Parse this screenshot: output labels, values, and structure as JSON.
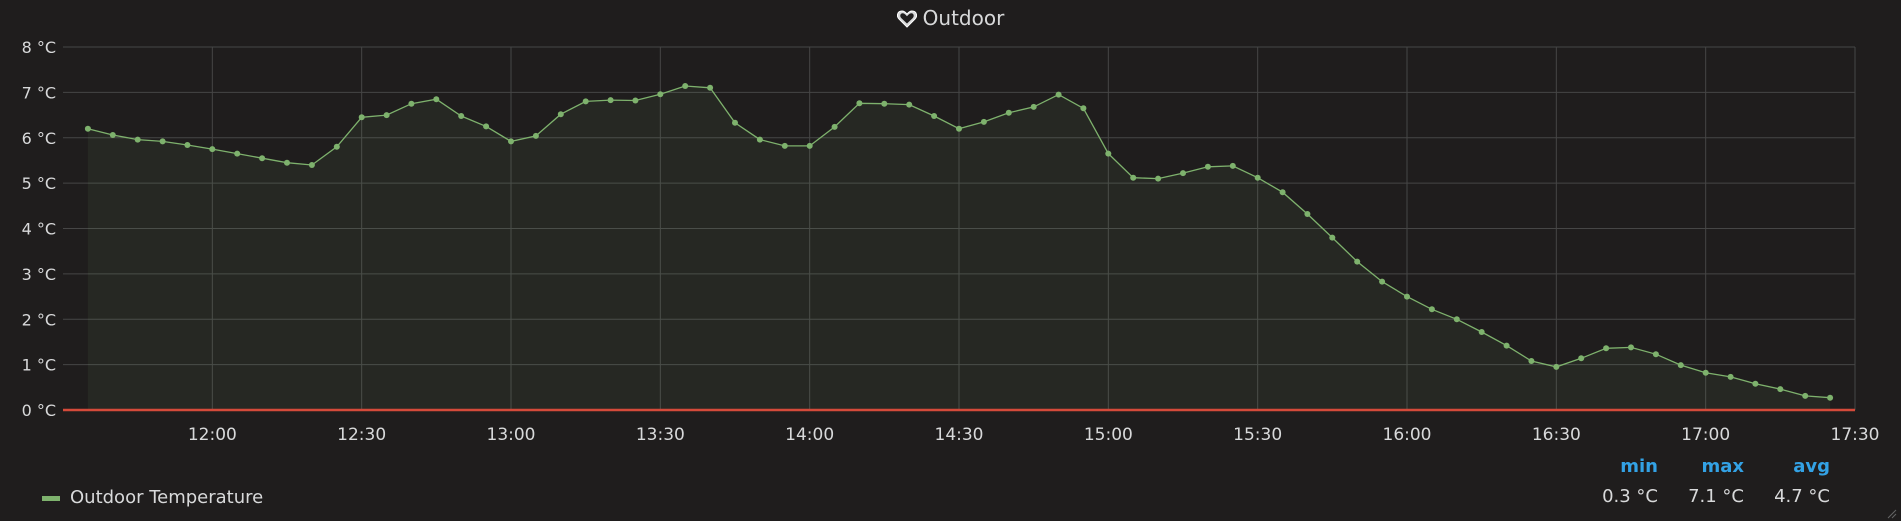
{
  "panel": {
    "title": "Outdoor"
  },
  "chart_data": {
    "type": "line",
    "title": "Outdoor",
    "y_unit": "°C",
    "ylim": [
      0,
      8
    ],
    "y_ticks": [
      "0 °C",
      "1 °C",
      "2 °C",
      "3 °C",
      "4 °C",
      "5 °C",
      "6 °C",
      "7 °C",
      "8 °C"
    ],
    "x_ticks": [
      "12:00",
      "12:30",
      "13:00",
      "13:30",
      "14:00",
      "14:30",
      "15:00",
      "15:30",
      "16:00",
      "16:30",
      "17:00",
      "17:30"
    ],
    "x_start": "11:35",
    "x_step_minutes": 5,
    "xlim_minutes": [
      690,
      1050
    ],
    "series": [
      {
        "name": "Outdoor Temperature",
        "color": "#7eb26d",
        "values": [
          6.2,
          6.06,
          5.96,
          5.92,
          5.84,
          5.75,
          5.65,
          5.55,
          5.45,
          5.4,
          5.8,
          6.45,
          6.5,
          6.75,
          6.85,
          6.48,
          6.25,
          5.92,
          6.04,
          6.52,
          6.8,
          6.83,
          6.82,
          6.96,
          7.14,
          7.1,
          6.33,
          5.96,
          5.82,
          5.82,
          6.24,
          6.76,
          6.75,
          6.73,
          6.48,
          6.2,
          6.35,
          6.55,
          6.68,
          6.95,
          6.65,
          5.65,
          5.12,
          5.1,
          5.22,
          5.36,
          5.38,
          5.12,
          4.8,
          4.32,
          3.8,
          3.27,
          2.83,
          2.5,
          2.22,
          2.0,
          1.72,
          1.42,
          1.08,
          0.95,
          1.14,
          1.36,
          1.38,
          1.23,
          0.99,
          0.82,
          0.73,
          0.58,
          0.46,
          0.31,
          0.27
        ]
      }
    ],
    "threshold": {
      "value": 0,
      "color": "#d44a3a"
    }
  },
  "legend": {
    "series_label": "Outdoor Temperature",
    "headers": {
      "min": "min",
      "max": "max",
      "avg": "avg"
    },
    "values": {
      "min": "0.3 °C",
      "max": "7.1 °C",
      "avg": "4.7 °C"
    }
  }
}
